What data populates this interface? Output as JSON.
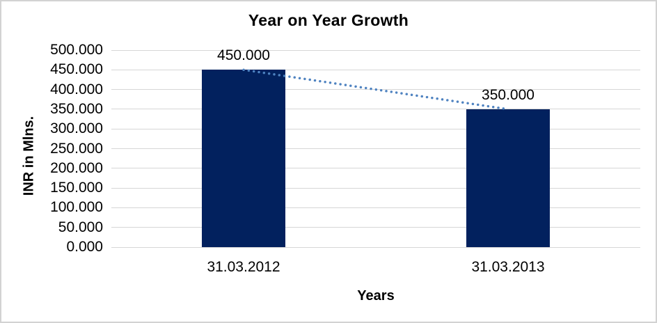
{
  "window": {
    "background_color": "#FFFFFF",
    "border_color": "#D2D2D2"
  },
  "chart": {
    "title": "Year on Year Growth",
    "y_axis_title": "INR in Mlns.",
    "x_axis_title": "Years"
  },
  "chart_data": {
    "type": "bar",
    "title": "Year on Year Growth",
    "categories": [
      "31.03.2012",
      "31.03.2013"
    ],
    "values": [
      450.0,
      350.0
    ],
    "data_labels": [
      "450.000",
      "350.000"
    ],
    "xlabel": "Years",
    "ylabel": "INR in Mlns.",
    "ylim": [
      0,
      500
    ],
    "ytick_step": 50,
    "ytick_labels": [
      "0.000",
      "50.000",
      "100.000",
      "150.000",
      "200.000",
      "250.000",
      "300.000",
      "350.000",
      "400.000",
      "450.000",
      "500.000"
    ],
    "grid": "horizontal",
    "legend": "none",
    "bar_color": "#02215E",
    "gridline_color": "#D6D6D6",
    "label_color": "#000000",
    "trendline": {
      "type": "linear",
      "style": "dotted",
      "color": "#4E82C0",
      "from_value": 450.0,
      "to_value": 350.0
    }
  }
}
